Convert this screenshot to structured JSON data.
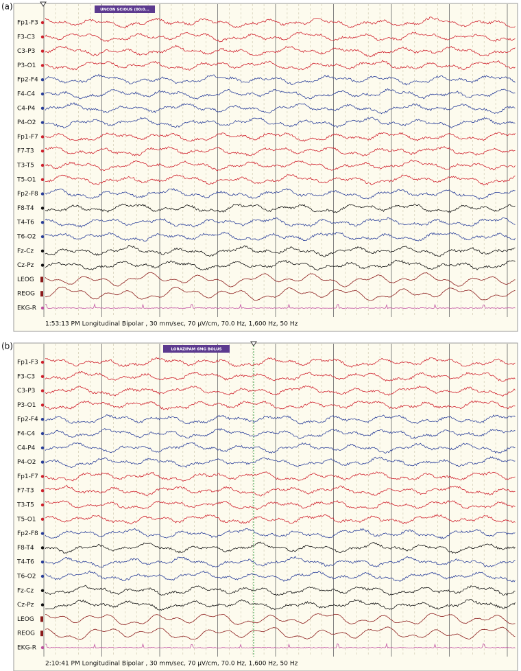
{
  "panels": [
    {
      "label": "(a)",
      "annotation": "UNCON SCIOUS (00:0...",
      "channels": [
        "Fp1-F3",
        "F3-C3",
        "C3-P3",
        "P3-O1",
        "Fp2-F4",
        "F4-C4",
        "C4-P4",
        "P4-O2",
        "Fp1-F7",
        "F7-T3",
        "T3-T5",
        "T5-O1",
        "Fp2-F8",
        "F8-T4",
        "T4-T6",
        "T6-O2",
        "Fz-Cz",
        "Cz-Pz",
        "LEOG",
        "REOG",
        "EKG-R"
      ],
      "footer": "1:53:13 PM Longitudinal Bipolar , 30 mm/sec, 70 µV/cm, 70.0 Hz, 1,600 Hz, 50 Hz"
    },
    {
      "label": "(b)",
      "annotation": "LORAZIPAM 6MG BOLUS",
      "channels": [
        "Fp1-F3",
        "F3-C3",
        "C3-P3",
        "P3-O1",
        "Fp2-F4",
        "F4-C4",
        "C4-P4",
        "P4-O2",
        "Fp1-F7",
        "F7-T3",
        "T3-T5",
        "T5-O1",
        "Fp2-F8",
        "F8-T4",
        "T4-T6",
        "T6-O2",
        "Fz-Cz",
        "Cz-Pz",
        "LEOG",
        "REOG",
        "EKG-R"
      ],
      "footer": "2:10:41 PM Longitudinal Bipolar , 30 mm/sec, 70 µV/cm, 70.0 Hz, 1,600 Hz, 50 Hz"
    }
  ]
}
